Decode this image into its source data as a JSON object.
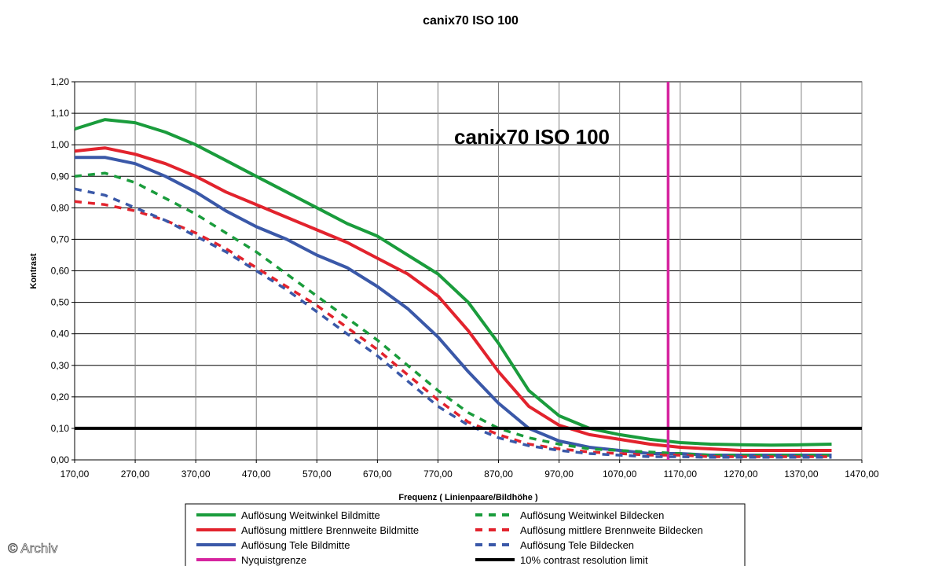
{
  "chart_data": {
    "type": "line",
    "title": "canix70 ISO 100",
    "inner_title": "canix70 ISO 100",
    "xlabel": "Frequenz ( Linienpaare/Bildhöhe )",
    "ylabel": "Kontrast",
    "xlim": [
      170,
      1470
    ],
    "ylim": [
      0,
      1.2
    ],
    "x_ticks": [
      "170,00",
      "270,00",
      "370,00",
      "470,00",
      "570,00",
      "670,00",
      "770,00",
      "870,00",
      "970,00",
      "1070,00",
      "1170,00",
      "1270,00",
      "1370,00",
      "1470,00"
    ],
    "y_ticks": [
      "0,00",
      "0,10",
      "0,20",
      "0,30",
      "0,40",
      "0,50",
      "0,60",
      "0,70",
      "0,80",
      "0,90",
      "1,00",
      "1,10",
      "1,20"
    ],
    "grid": true,
    "legend_position": "bottom",
    "series": [
      {
        "name": "Auflösung Weitwinkel Bildmitte",
        "color": "#1a9c3c",
        "style": "solid",
        "x": [
          170,
          220,
          270,
          320,
          370,
          420,
          470,
          520,
          570,
          620,
          670,
          720,
          770,
          820,
          870,
          920,
          970,
          1020,
          1070,
          1120,
          1170,
          1220,
          1270,
          1320,
          1370,
          1420
        ],
        "y": [
          1.05,
          1.08,
          1.07,
          1.04,
          1.0,
          0.95,
          0.9,
          0.85,
          0.8,
          0.75,
          0.71,
          0.65,
          0.59,
          0.5,
          0.37,
          0.22,
          0.14,
          0.1,
          0.08,
          0.065,
          0.055,
          0.05,
          0.048,
          0.047,
          0.048,
          0.05
        ]
      },
      {
        "name": "Auflösung mittlere Brennweite Bildmitte",
        "color": "#e2232d",
        "style": "solid",
        "x": [
          170,
          220,
          270,
          320,
          370,
          420,
          470,
          520,
          570,
          620,
          670,
          720,
          770,
          820,
          870,
          920,
          970,
          1020,
          1070,
          1120,
          1170,
          1220,
          1270,
          1320,
          1370,
          1420
        ],
        "y": [
          0.98,
          0.99,
          0.97,
          0.94,
          0.9,
          0.85,
          0.81,
          0.77,
          0.73,
          0.69,
          0.64,
          0.59,
          0.52,
          0.41,
          0.28,
          0.17,
          0.11,
          0.08,
          0.065,
          0.05,
          0.04,
          0.035,
          0.03,
          0.03,
          0.03,
          0.03
        ]
      },
      {
        "name": "Auflösung Tele Bildmitte",
        "color": "#3a58a8",
        "style": "solid",
        "x": [
          170,
          220,
          270,
          320,
          370,
          420,
          470,
          520,
          570,
          620,
          670,
          720,
          770,
          820,
          870,
          920,
          970,
          1020,
          1070,
          1120,
          1170,
          1220,
          1270,
          1320,
          1370,
          1420
        ],
        "y": [
          0.96,
          0.96,
          0.94,
          0.9,
          0.85,
          0.79,
          0.74,
          0.7,
          0.65,
          0.61,
          0.55,
          0.48,
          0.39,
          0.28,
          0.18,
          0.1,
          0.06,
          0.04,
          0.03,
          0.02,
          0.02,
          0.015,
          0.015,
          0.015,
          0.015,
          0.015
        ]
      },
      {
        "name": "Nyquistgrenze",
        "color": "#d6249f",
        "style": "solid",
        "x": [
          1150,
          1150
        ],
        "y": [
          0,
          1.2
        ]
      },
      {
        "name": "Auflösung Weitwinkel Bildecken",
        "color": "#1a9c3c",
        "style": "dashed",
        "x": [
          170,
          220,
          270,
          320,
          370,
          420,
          470,
          520,
          570,
          620,
          670,
          720,
          770,
          820,
          870,
          920,
          970,
          1020,
          1070,
          1120,
          1170,
          1220,
          1270,
          1320,
          1370,
          1420
        ],
        "y": [
          0.9,
          0.91,
          0.88,
          0.83,
          0.78,
          0.72,
          0.66,
          0.59,
          0.52,
          0.45,
          0.38,
          0.3,
          0.22,
          0.15,
          0.1,
          0.07,
          0.05,
          0.035,
          0.03,
          0.025,
          0.02,
          0.015,
          0.015,
          0.015,
          0.015,
          0.015
        ]
      },
      {
        "name": "Auflösung mittlere Brennweite Bildecken",
        "color": "#e2232d",
        "style": "dashed",
        "x": [
          170,
          220,
          270,
          320,
          370,
          420,
          470,
          520,
          570,
          620,
          670,
          720,
          770,
          820,
          870,
          920,
          970,
          1020,
          1070,
          1120,
          1170,
          1220,
          1270,
          1320,
          1370,
          1420
        ],
        "y": [
          0.82,
          0.81,
          0.79,
          0.76,
          0.72,
          0.67,
          0.61,
          0.55,
          0.49,
          0.42,
          0.35,
          0.27,
          0.19,
          0.12,
          0.08,
          0.05,
          0.035,
          0.025,
          0.02,
          0.015,
          0.015,
          0.01,
          0.01,
          0.01,
          0.01,
          0.01
        ]
      },
      {
        "name": "Auflösung Tele Bildecken",
        "color": "#3a58a8",
        "style": "dashed",
        "x": [
          170,
          220,
          270,
          320,
          370,
          420,
          470,
          520,
          570,
          620,
          670,
          720,
          770,
          820,
          870,
          920,
          970,
          1020,
          1070,
          1120,
          1170,
          1220,
          1270,
          1320,
          1370,
          1420
        ],
        "y": [
          0.86,
          0.84,
          0.8,
          0.76,
          0.71,
          0.66,
          0.6,
          0.54,
          0.47,
          0.4,
          0.33,
          0.25,
          0.17,
          0.11,
          0.07,
          0.045,
          0.03,
          0.02,
          0.015,
          0.01,
          0.01,
          0.008,
          0.008,
          0.008,
          0.008,
          0.008
        ]
      },
      {
        "name": "10% contrast resolution limit",
        "color": "#000000",
        "style": "solid",
        "x": [
          170,
          1470
        ],
        "y": [
          0.1,
          0.1
        ]
      }
    ],
    "legend_order": [
      "Auflösung Weitwinkel Bildmitte",
      "Auflösung Weitwinkel Bildecken",
      "Auflösung mittlere Brennweite Bildmitte",
      "Auflösung mittlere Brennweite Bildecken",
      "Auflösung Tele Bildmitte",
      "Auflösung Tele Bildecken",
      "Nyquistgrenze",
      "10% contrast resolution limit"
    ]
  },
  "watermark": "© Archiv"
}
